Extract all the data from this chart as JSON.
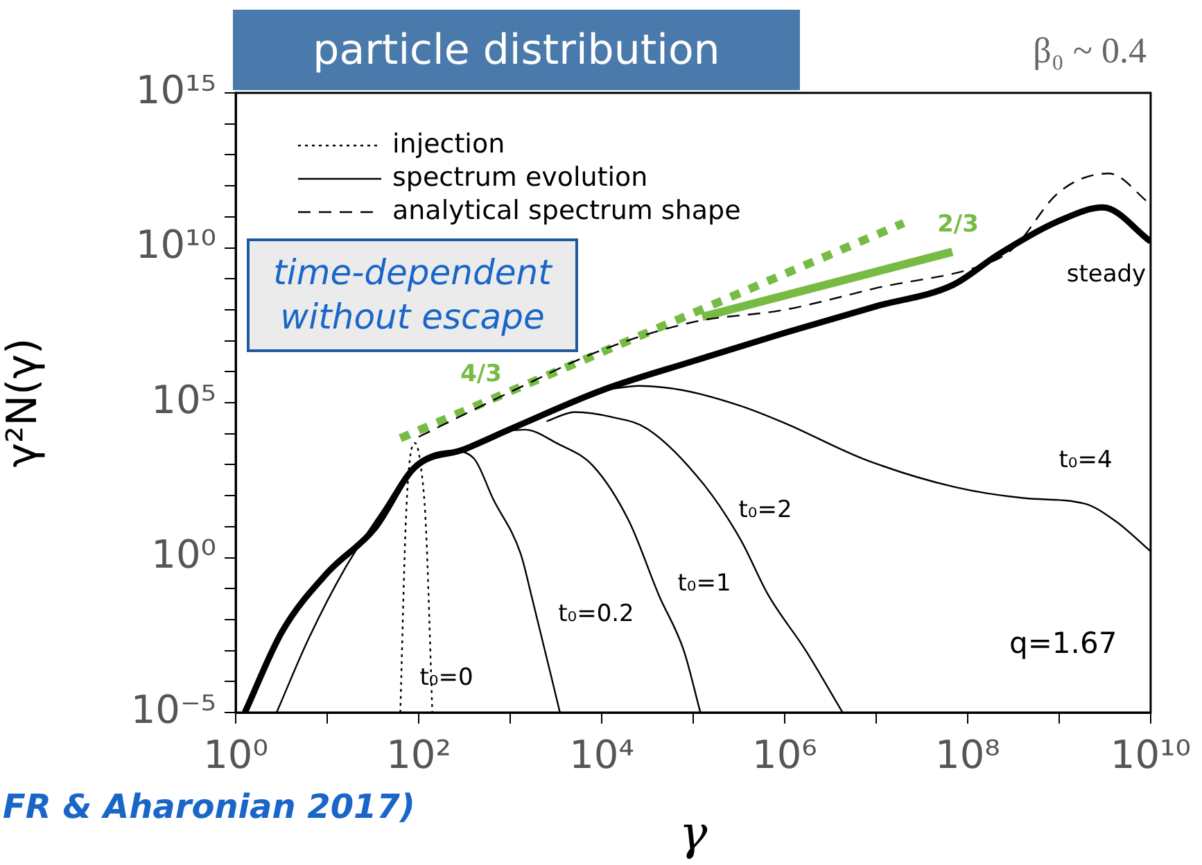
{
  "chart_data": {
    "type": "line",
    "title": "particle distribution",
    "subtitle": "β₀ ~ 0.4",
    "xlabel": "γ",
    "ylabel": "γ²N(γ)",
    "log": "xy",
    "grid": false,
    "legend": "top left",
    "marker": "none",
    "xlim": [
      1,
      10000000000.0
    ],
    "ylim": [
      1e-05,
      1000000000000000.0
    ],
    "xticks": [
      {
        "value": 1,
        "label": "10⁰"
      },
      {
        "value": 10,
        "label": null
      },
      {
        "value": 100,
        "label": "10²"
      },
      {
        "value": 1000,
        "label": null
      },
      {
        "value": 10000.0,
        "label": "10⁴"
      },
      {
        "value": 100000.0,
        "label": null
      },
      {
        "value": 1000000.0,
        "label": "10⁶"
      },
      {
        "value": 10000000.0,
        "label": null
      },
      {
        "value": 100000000.0,
        "label": "10⁸"
      },
      {
        "value": 1000000000.0,
        "label": null
      },
      {
        "value": 10000000000.0,
        "label": "10¹⁰"
      }
    ],
    "yticks": [
      {
        "value": 1e-05,
        "label": "10⁻⁵"
      },
      {
        "value": 0.0001,
        "label": null
      },
      {
        "value": 0.001,
        "label": null
      },
      {
        "value": 0.01,
        "label": null
      },
      {
        "value": 0.1,
        "label": null
      },
      {
        "value": 1,
        "label": "10⁰"
      },
      {
        "value": 10,
        "label": null
      },
      {
        "value": 100,
        "label": null
      },
      {
        "value": 1000,
        "label": null
      },
      {
        "value": 10000.0,
        "label": null
      },
      {
        "value": 100000.0,
        "label": "10⁵"
      },
      {
        "value": 1000000.0,
        "label": null
      },
      {
        "value": 10000000.0,
        "label": null
      },
      {
        "value": 100000000.0,
        "label": null
      },
      {
        "value": 1000000000.0,
        "label": null
      },
      {
        "value": 10000000000.0,
        "label": "10¹⁰"
      },
      {
        "value": 100000000000.0,
        "label": null
      },
      {
        "value": 1000000000000.0,
        "label": null
      },
      {
        "value": 10000000000000.0,
        "label": null
      },
      {
        "value": 100000000000000.0,
        "label": null
      },
      {
        "value": 1000000000000000.0,
        "label": "10¹⁵"
      }
    ],
    "series": [
      {
        "name": "injection",
        "color": "#000000",
        "line_style": "dotted",
        "x": [
          63,
          72,
          79,
          91,
          105,
          120,
          141
        ],
        "values": [
          1e-05,
          10,
          1000,
          5000,
          1000,
          10,
          1e-05
        ]
      },
      {
        "name": "spectrum evolution",
        "color": "#000000",
        "line_style": "solid",
        "x": [
          2.8,
          6.3,
          16,
          40,
          90,
          230,
          400,
          650,
          1300,
          1700,
          3500
        ],
        "values": [
          1e-05,
          0.0025,
          0.5,
          32,
          1000,
          2800,
          1600,
          79,
          1.35,
          0.063,
          1e-05
        ]
      },
      {
        "color": "#000000",
        "line_style": "solid",
        "x": [
          1000,
          1450,
          3200,
          8100,
          20000.0,
          42000.0,
          79000.0,
          120000.0
        ],
        "values": [
          12600.0,
          13500.0,
          5000,
          890,
          14.5,
          0.063,
          0.001,
          1e-05
        ]
      },
      {
        "color": "#000000",
        "line_style": "solid",
        "x": [
          2500,
          5100,
          12600.0,
          32000.0,
          130000.0,
          330000.0,
          660000.0,
          1700000.0,
          4300000.0
        ],
        "values": [
          25000.0,
          50000.0,
          35000.0,
          14000.0,
          234,
          3.8,
          0.063,
          0.001,
          1e-05
        ]
      },
      {
        "color": "#000000",
        "line_style": "solid",
        "x": [
          10000.0,
          26000.0,
          79000.0,
          330000.0,
          1000000.0,
          7400000.0,
          72000000.0,
          420000000.0,
          1900000000.0,
          4200000000.0,
          10000000000.0
        ],
        "values": [
          250000.0,
          350000.0,
          250000.0,
          79000.0,
          22000.0,
          1500,
          190,
          83,
          55,
          14.5,
          1.6
        ]
      },
      {
        "name": "analytical spectrum shape",
        "color": "#000000",
        "line_style": "dashed",
        "x": [
          100,
          1000,
          10000.0,
          100000.0,
          1000000.0,
          10000000.0,
          200000000.0,
          320000000.0,
          1000000000.0,
          3500000000.0,
          10000000000.0
        ],
        "values": [
          7900,
          220000.0,
          5000000.0,
          40000000.0,
          100000000.0,
          500000000.0,
          4000000000.0,
          10000000000.0,
          630000000000.0,
          2500000000000.0,
          250000000000.0
        ]
      },
      {
        "color": "#000000",
        "line_style": "solid",
        "x": [
          1.26,
          3.2,
          10,
          33,
          90,
          320,
          1000,
          10000.0,
          100000.0,
          1000000.0,
          10000000.0,
          69000000.0,
          220000000.0,
          1050000000.0,
          3000000000.0,
          10000000000.0
        ],
        "values": [
          1e-05,
          0.004,
          0.32,
          8.7,
          800,
          3200,
          14000.0,
          250000.0,
          2200000.0,
          18000000.0,
          130000000.0,
          630000000.0,
          6300000000.0,
          79000000000.0,
          200000000000.0,
          16000000000.0
        ]
      },
      {
        "color": "#77bb44",
        "line_style": "dotted",
        "x": [
          63,
          20000000.0
        ],
        "values": [
          7100,
          63000000000.0
        ]
      },
      {
        "color": "#77bb44",
        "line_style": "solid",
        "x": [
          126000.0,
          68000000.0
        ],
        "values": [
          59000000.0,
          7400000000.0
        ]
      }
    ],
    "annotations": [
      "time-dependent without escape",
      "q=1.67",
      "FR & Aharonian 2017)",
      "4/3",
      "2/3",
      "steady",
      "t₀=0",
      "t₀=0.2",
      "t₀=1",
      "t₀=2",
      "t₀=4"
    ]
  }
}
